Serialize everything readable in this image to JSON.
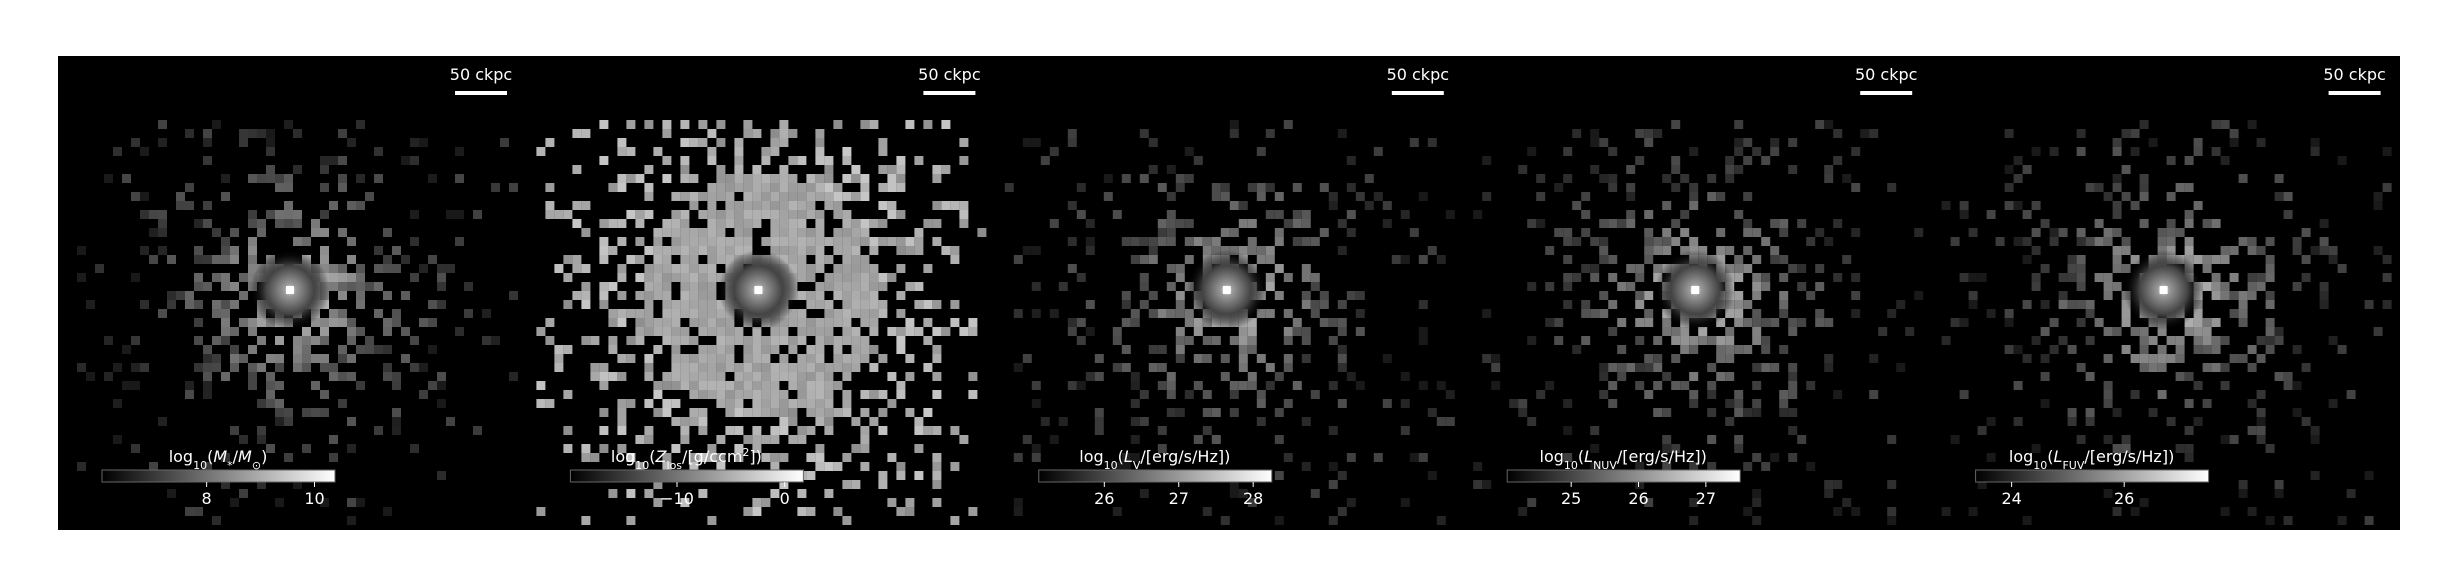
{
  "panels": [
    {
      "scale_bar_label": "50 ckpc",
      "colorbar": {
        "label": [
          {
            "text": "log"
          },
          {
            "text": "10",
            "sub": true
          },
          {
            "text": "("
          },
          {
            "text": "M",
            "italic": true
          },
          {
            "text": "*",
            "sub": true
          },
          {
            "text": "/"
          },
          {
            "text": "M",
            "italic": true
          },
          {
            "text": "⊙",
            "sub": true
          },
          {
            "text": ")"
          }
        ],
        "lim": [
          6.06,
          10.38
        ],
        "ticks": [
          8,
          10
        ]
      }
    },
    {
      "scale_bar_label": "50 ckpc",
      "colorbar": {
        "label": [
          {
            "text": "log"
          },
          {
            "text": "10",
            "sub": true
          },
          {
            "text": "("
          },
          {
            "text": "Z",
            "italic": true
          },
          {
            "text": "los",
            "sub": true
          },
          {
            "text": "/[g/ccm"
          },
          {
            "text": "2",
            "sup": true
          },
          {
            "text": "])"
          }
        ],
        "lim": [
          -19.9,
          1.74
        ],
        "ticks": [
          {
            "value": -10,
            "label": "−10"
          },
          0
        ]
      }
    },
    {
      "scale_bar_label": "50 ckpc",
      "colorbar": {
        "label": [
          {
            "text": "log"
          },
          {
            "text": "10",
            "sub": true
          },
          {
            "text": "("
          },
          {
            "text": "L",
            "italic": true
          },
          {
            "text": "V",
            "sub": true
          },
          {
            "text": "/[erg/s/Hz])"
          }
        ],
        "lim": [
          25.12,
          28.25
        ],
        "ticks": [
          26,
          27,
          28
        ]
      }
    },
    {
      "scale_bar_label": "50 ckpc",
      "colorbar": {
        "label": [
          {
            "text": "log"
          },
          {
            "text": "10",
            "sub": true
          },
          {
            "text": "("
          },
          {
            "text": "L",
            "italic": true
          },
          {
            "text": "NUV",
            "sub": true
          },
          {
            "text": "/[erg/s/Hz])"
          }
        ],
        "lim": [
          24.05,
          27.51
        ],
        "ticks": [
          25,
          26,
          27
        ]
      }
    },
    {
      "scale_bar_label": "50 ckpc",
      "colorbar": {
        "label": [
          {
            "text": "log"
          },
          {
            "text": "10",
            "sub": true
          },
          {
            "text": "("
          },
          {
            "text": "L",
            "italic": true
          },
          {
            "text": "FUV",
            "sub": true
          },
          {
            "text": "/[erg/s/Hz])"
          }
        ],
        "lim": [
          23.36,
          27.5
        ],
        "ticks": [
          24,
          26
        ]
      }
    }
  ]
}
